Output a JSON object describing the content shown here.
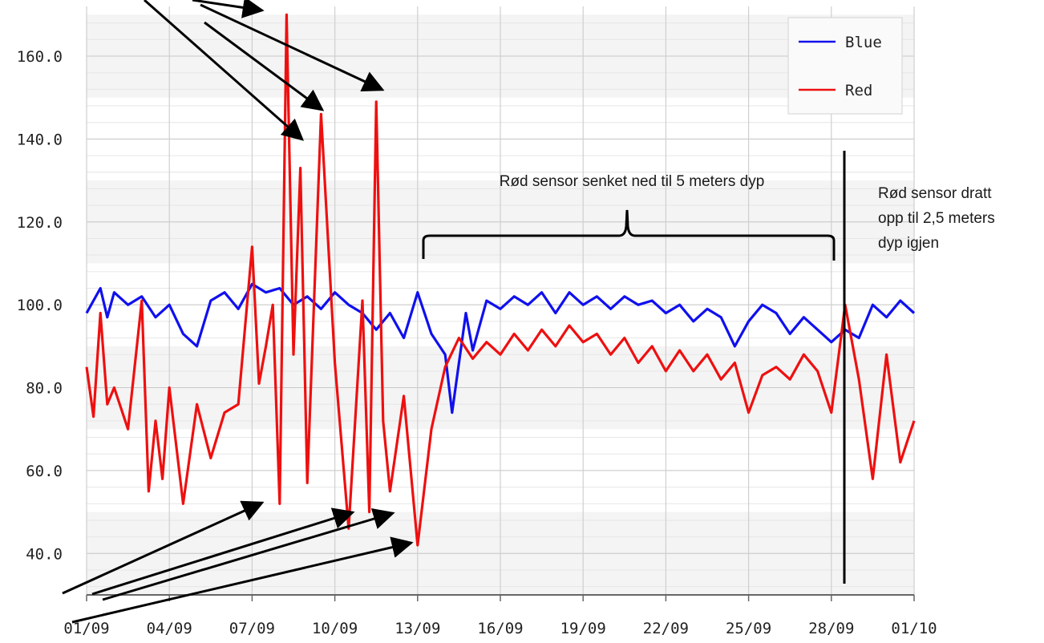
{
  "chart_data": {
    "type": "line",
    "x_axis": {
      "type": "date",
      "tick_labels": [
        "01/09",
        "04/09",
        "07/09",
        "10/09",
        "13/09",
        "16/09",
        "19/09",
        "22/09",
        "25/09",
        "28/09",
        "01/10"
      ],
      "range": [
        "01/09",
        "01/10"
      ]
    },
    "y_axis": {
      "tick_labels": [
        "40.0",
        "60.0",
        "80.0",
        "100.0",
        "120.0",
        "140.0",
        "160.0"
      ],
      "range": [
        30,
        172
      ]
    },
    "grid": true,
    "legend": {
      "placement": "top-right",
      "entries": [
        "Blue",
        "Red"
      ]
    },
    "series": [
      {
        "name": "Blue",
        "color": "#1010ee",
        "points": [
          [
            "01/09",
            98
          ],
          [
            "01/09 06h",
            101
          ],
          [
            "01/09 12h",
            104
          ],
          [
            "01/09 18h",
            97
          ],
          [
            "02/09",
            103
          ],
          [
            "02/09 12h",
            100
          ],
          [
            "03/09",
            102
          ],
          [
            "03/09 12h",
            97
          ],
          [
            "04/09",
            100
          ],
          [
            "04/09 12h",
            93
          ],
          [
            "05/09",
            90
          ],
          [
            "05/09 12h",
            101
          ],
          [
            "06/09",
            103
          ],
          [
            "06/09 12h",
            99
          ],
          [
            "07/09",
            105
          ],
          [
            "07/09 12h",
            103
          ],
          [
            "08/09",
            104
          ],
          [
            "08/09 12h",
            100
          ],
          [
            "09/09",
            102
          ],
          [
            "09/09 12h",
            99
          ],
          [
            "10/09",
            103
          ],
          [
            "10/09 12h",
            100
          ],
          [
            "11/09",
            98
          ],
          [
            "11/09 12h",
            94
          ],
          [
            "12/09",
            98
          ],
          [
            "12/09 12h",
            92
          ],
          [
            "13/09",
            103
          ],
          [
            "13/09 12h",
            93
          ],
          [
            "14/09",
            88
          ],
          [
            "14/09 06h",
            74
          ],
          [
            "14/09 12h",
            86
          ],
          [
            "14/09 18h",
            98
          ],
          [
            "15/09",
            89
          ],
          [
            "15/09 12h",
            101
          ],
          [
            "16/09",
            99
          ],
          [
            "16/09 12h",
            102
          ],
          [
            "17/09",
            100
          ],
          [
            "17/09 12h",
            103
          ],
          [
            "18/09",
            98
          ],
          [
            "18/09 12h",
            103
          ],
          [
            "19/09",
            100
          ],
          [
            "19/09 12h",
            102
          ],
          [
            "20/09",
            99
          ],
          [
            "20/09 12h",
            102
          ],
          [
            "21/09",
            100
          ],
          [
            "21/09 12h",
            101
          ],
          [
            "22/09",
            98
          ],
          [
            "22/09 12h",
            100
          ],
          [
            "23/09",
            96
          ],
          [
            "23/09 12h",
            99
          ],
          [
            "24/09",
            97
          ],
          [
            "24/09 12h",
            90
          ],
          [
            "25/09",
            96
          ],
          [
            "25/09 12h",
            100
          ],
          [
            "26/09",
            98
          ],
          [
            "26/09 12h",
            93
          ],
          [
            "27/09",
            97
          ],
          [
            "27/09 12h",
            94
          ],
          [
            "28/09",
            91
          ],
          [
            "28/09 12h",
            94
          ],
          [
            "29/09",
            92
          ],
          [
            "29/09 12h",
            100
          ],
          [
            "30/09",
            97
          ],
          [
            "30/09 12h",
            101
          ],
          [
            "01/10",
            98
          ]
        ]
      },
      {
        "name": "Red",
        "color": "#ee1010",
        "points": [
          [
            "01/09",
            85
          ],
          [
            "01/09 06h",
            73
          ],
          [
            "01/09 12h",
            98
          ],
          [
            "01/09 18h",
            76
          ],
          [
            "02/09",
            80
          ],
          [
            "02/09 12h",
            70
          ],
          [
            "03/09",
            101
          ],
          [
            "03/09 06h",
            55
          ],
          [
            "03/09 12h",
            72
          ],
          [
            "03/09 18h",
            58
          ],
          [
            "04/09",
            80
          ],
          [
            "04/09 12h",
            52
          ],
          [
            "05/09",
            76
          ],
          [
            "05/09 12h",
            63
          ],
          [
            "06/09",
            74
          ],
          [
            "06/09 12h",
            76
          ],
          [
            "07/09",
            114
          ],
          [
            "07/09 06h",
            81
          ],
          [
            "07/09 12h",
            90
          ],
          [
            "07/09 18h",
            100
          ],
          [
            "08/09",
            52
          ],
          [
            "08/09 06h",
            170
          ],
          [
            "08/09 12h",
            88
          ],
          [
            "08/09 18h",
            133
          ],
          [
            "09/09",
            57
          ],
          [
            "09/09 12h",
            146
          ],
          [
            "10/09",
            86
          ],
          [
            "10/09 12h",
            46
          ],
          [
            "11/09",
            101
          ],
          [
            "11/09 06h",
            50
          ],
          [
            "11/09 12h",
            149
          ],
          [
            "11/09 18h",
            72
          ],
          [
            "12/09",
            55
          ],
          [
            "12/09 12h",
            78
          ],
          [
            "13/09",
            42
          ],
          [
            "13/09 12h",
            70
          ],
          [
            "14/09",
            85
          ],
          [
            "14/09 12h",
            92
          ],
          [
            "15/09",
            87
          ],
          [
            "15/09 12h",
            91
          ],
          [
            "16/09",
            88
          ],
          [
            "16/09 12h",
            93
          ],
          [
            "17/09",
            89
          ],
          [
            "17/09 12h",
            94
          ],
          [
            "18/09",
            90
          ],
          [
            "18/09 12h",
            95
          ],
          [
            "19/09",
            91
          ],
          [
            "19/09 12h",
            93
          ],
          [
            "20/09",
            88
          ],
          [
            "20/09 12h",
            92
          ],
          [
            "21/09",
            86
          ],
          [
            "21/09 12h",
            90
          ],
          [
            "22/09",
            84
          ],
          [
            "22/09 12h",
            89
          ],
          [
            "23/09",
            84
          ],
          [
            "23/09 12h",
            88
          ],
          [
            "24/09",
            82
          ],
          [
            "24/09 12h",
            86
          ],
          [
            "25/09",
            74
          ],
          [
            "25/09 12h",
            83
          ],
          [
            "26/09",
            85
          ],
          [
            "26/09 12h",
            82
          ],
          [
            "27/09",
            88
          ],
          [
            "27/09 12h",
            84
          ],
          [
            "28/09",
            74
          ],
          [
            "28/09 12h",
            100
          ],
          [
            "29/09",
            82
          ],
          [
            "29/09 12h",
            58
          ],
          [
            "30/09",
            88
          ],
          [
            "30/09 12h",
            62
          ],
          [
            "01/10",
            72
          ]
        ]
      }
    ],
    "annotations": [
      {
        "text_lines": [
          "Rød sensor senket ned til 5 meters dyp"
        ]
      },
      {
        "text_lines": [
          "Rød sensor dratt",
          "opp til 2,5 meters",
          "dyp igjen"
        ]
      }
    ]
  }
}
